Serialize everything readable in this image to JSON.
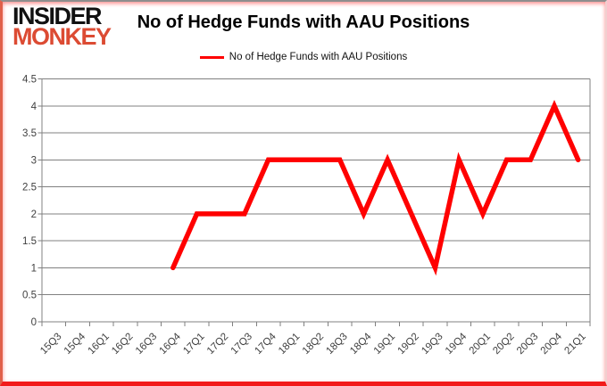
{
  "logo": {
    "line1": "INSIDER",
    "line2": "MONKEY"
  },
  "header": {
    "title": "No of Hedge Funds with AAU Positions"
  },
  "legend": {
    "label": "No of Hedge Funds with AAU Positions"
  },
  "colors": {
    "series": "#ff0000",
    "grid": "#808080",
    "axis_text": "#3f3f3f",
    "logo_black": "#111111",
    "logo_red": "#dc4b33",
    "background": "#ffffff"
  },
  "chart_data": {
    "type": "line",
    "title": "No of Hedge Funds with AAU Positions",
    "xlabel": "",
    "ylabel": "",
    "categories": [
      "15Q3",
      "15Q4",
      "16Q1",
      "16Q2",
      "16Q3",
      "16Q4",
      "17Q1",
      "17Q2",
      "17Q3",
      "17Q4",
      "18Q1",
      "18Q2",
      "18Q3",
      "18Q4",
      "19Q1",
      "19Q2",
      "19Q3",
      "19Q4",
      "20Q1",
      "20Q2",
      "20Q3",
      "20Q4",
      "21Q1"
    ],
    "series": [
      {
        "name": "No of Hedge Funds with AAU Positions",
        "color": "#ff0000",
        "values": [
          null,
          null,
          null,
          null,
          null,
          1,
          2,
          2,
          2,
          3,
          3,
          3,
          3,
          2,
          3,
          2,
          1,
          3,
          2,
          3,
          3,
          4,
          3
        ]
      }
    ],
    "ylim": [
      0,
      4.5
    ],
    "ytick_step": 0.5,
    "yticks": [
      0,
      0.5,
      1,
      1.5,
      2,
      2.5,
      3,
      3.5,
      4,
      4.5
    ],
    "grid": "horizontal",
    "legend_position": "top"
  }
}
